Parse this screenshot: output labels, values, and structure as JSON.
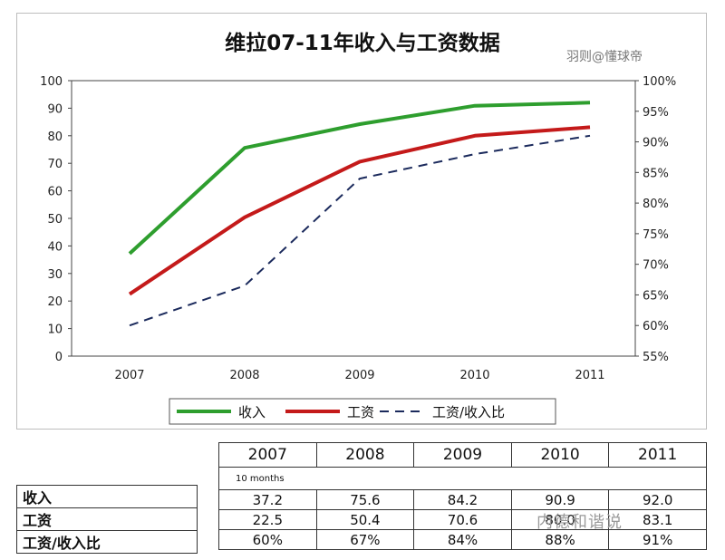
{
  "chart_data": {
    "type": "line",
    "title": "维拉07-11年收入与工资数据",
    "categories": [
      "2007",
      "2008",
      "2009",
      "2010",
      "2011"
    ],
    "series": [
      {
        "name": "收入",
        "axis": "left",
        "color": "#2e9e2e",
        "values": [
          37.2,
          75.6,
          84.2,
          90.9,
          92.0
        ]
      },
      {
        "name": "工资",
        "axis": "left",
        "color": "#c41a1a",
        "values": [
          22.5,
          50.4,
          70.6,
          80.0,
          83.1
        ]
      },
      {
        "name": "工资/收入比",
        "axis": "right",
        "color": "#1b2a5c",
        "dashed": true,
        "values": [
          60,
          66.5,
          84,
          88,
          91
        ]
      }
    ],
    "y_left": {
      "range": [
        0,
        100
      ],
      "ticks": [
        "0",
        "10",
        "20",
        "30",
        "40",
        "50",
        "60",
        "70",
        "80",
        "90",
        "100"
      ]
    },
    "y_right": {
      "range": [
        55,
        100
      ],
      "ticks": [
        "55%",
        "60%",
        "65%",
        "70%",
        "75%",
        "80%",
        "85%",
        "90%",
        "95%",
        "100%"
      ]
    },
    "grid": false,
    "legend_position": "bottom"
  },
  "watermark": "羽则@懂球帝",
  "table": {
    "years": [
      "2007",
      "2008",
      "2009",
      "2010",
      "2011"
    ],
    "note": "10 months",
    "rows": [
      {
        "label": "收入",
        "values": [
          "37.2",
          "75.6",
          "84.2",
          "90.9",
          "92.0"
        ]
      },
      {
        "label": "工资",
        "values": [
          "22.5",
          "50.4",
          "70.6",
          "80.0",
          "83.1"
        ]
      },
      {
        "label": "工资/收入比",
        "values": [
          "60%",
          "67%",
          "84%",
          "88%",
          "91%"
        ]
      }
    ]
  },
  "page_watermark": "内德和谐说"
}
